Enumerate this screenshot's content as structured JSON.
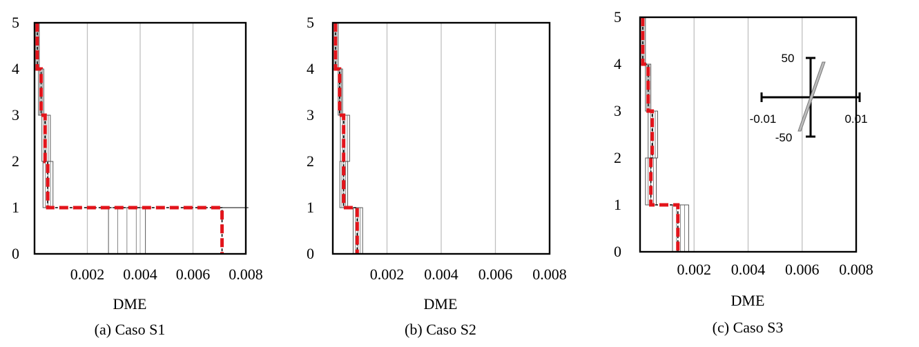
{
  "chart_data": [
    {
      "type": "line",
      "caption": "(a) Caso S1",
      "xlabel": "DME",
      "x_ticks": [
        "0.002",
        "0.004",
        "0.006",
        "0.008"
      ],
      "y_ticks": [
        "0",
        "1",
        "2",
        "3",
        "4",
        "5"
      ],
      "xlim": [
        0,
        0.008
      ],
      "ylim": [
        0,
        5
      ],
      "grid": "vertical",
      "mean_profile": [
        {
          "story": 5,
          "dme": 0.0001
        },
        {
          "story": 4,
          "dme": 0.00025
        },
        {
          "story": 3,
          "dme": 0.0004
        },
        {
          "story": 2,
          "dme": 0.0005
        },
        {
          "story": 1,
          "dme": 0.0071
        }
      ],
      "record_boxes": [
        {
          "story": 5,
          "min": 0.0,
          "max": 0.00018
        },
        {
          "story": 4,
          "min": 0.00015,
          "max": 0.00035
        },
        {
          "story": 3,
          "min": 0.00028,
          "max": 0.0006
        },
        {
          "story": 2,
          "min": 0.00032,
          "max": 0.0007
        },
        {
          "story": 1,
          "min": 0.0028,
          "max": 0.0042
        }
      ],
      "peak_story1": 0.0081
    },
    {
      "type": "line",
      "caption": "(b) Caso S2",
      "xlabel": "DME",
      "x_ticks": [
        "0.002",
        "0.004",
        "0.006",
        "0.008"
      ],
      "y_ticks": [
        "0",
        "1",
        "2",
        "3",
        "4",
        "5"
      ],
      "xlim": [
        0,
        0.008
      ],
      "ylim": [
        0,
        5
      ],
      "grid": "vertical",
      "mean_profile": [
        {
          "story": 5,
          "dme": 0.0001
        },
        {
          "story": 4,
          "dme": 0.00025
        },
        {
          "story": 3,
          "dme": 0.0004
        },
        {
          "story": 2,
          "dme": 0.0004
        },
        {
          "story": 1,
          "dme": 0.0009
        }
      ],
      "record_boxes": [
        {
          "story": 5,
          "min": 0.0,
          "max": 0.0002
        },
        {
          "story": 4,
          "min": 0.0002,
          "max": 0.00036
        },
        {
          "story": 3,
          "min": 0.00028,
          "max": 0.00062
        },
        {
          "story": 2,
          "min": 0.00026,
          "max": 0.00055
        },
        {
          "story": 1,
          "min": 0.00075,
          "max": 0.0011
        }
      ],
      "peak_story1": null
    },
    {
      "type": "line",
      "caption": "(c) Caso S3",
      "xlabel": "DME",
      "x_ticks": [
        "0.002",
        "0.004",
        "0.006",
        "0.008"
      ],
      "y_ticks": [
        "0",
        "1",
        "2",
        "3",
        "4",
        "5"
      ],
      "xlim": [
        0,
        0.008
      ],
      "ylim": [
        0,
        5
      ],
      "grid": "vertical",
      "mean_profile": [
        {
          "story": 5,
          "dme": 0.0001
        },
        {
          "story": 4,
          "dme": 0.0003
        },
        {
          "story": 3,
          "dme": 0.00045
        },
        {
          "story": 2,
          "dme": 0.0004
        },
        {
          "story": 1,
          "dme": 0.0014
        }
      ],
      "record_boxes": [
        {
          "story": 5,
          "min": 0.0,
          "max": 0.0002
        },
        {
          "story": 4,
          "min": 0.0002,
          "max": 0.0004
        },
        {
          "story": 3,
          "min": 0.0003,
          "max": 0.00065
        },
        {
          "story": 2,
          "min": 0.0002,
          "max": 0.0006
        },
        {
          "story": 1,
          "min": 0.0012,
          "max": 0.0018
        }
      ],
      "peak_story1": null,
      "inset": {
        "x_labels": [
          "-0.01",
          "0.01"
        ],
        "y_labels": [
          "50",
          "-50"
        ]
      }
    }
  ]
}
